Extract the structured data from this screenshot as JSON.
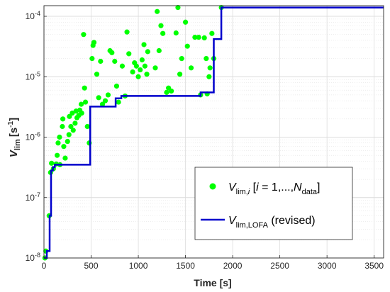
{
  "chart_data": {
    "type": "scatter",
    "xlabel": "Time [s]",
    "ylabel_main": "V",
    "ylabel_sub": "lim",
    "ylabel_unit": "[s",
    "ylabel_unit_exp": "-1",
    "ylabel_unit_end": "]",
    "xlim": [
      0,
      3600
    ],
    "ylim": [
      1e-08,
      0.00015
    ],
    "yscale": "log",
    "grid": true,
    "legend_position": "bottom-right",
    "colors": {
      "scatter": "#00ff00",
      "line": "#0000cc",
      "grid": "#dcdcdc",
      "axis": "#262626"
    },
    "x_ticks": [
      0,
      500,
      1000,
      1500,
      2000,
      2500,
      3000,
      3500
    ],
    "x_tick_labels": [
      "0",
      "500",
      "1000",
      "1500",
      "2000",
      "2500",
      "3000",
      "3500"
    ],
    "y_ticks": [
      {
        "value": 1e-08,
        "base": "10",
        "exp": "-8"
      },
      {
        "value": 1e-07,
        "base": "10",
        "exp": "-7"
      },
      {
        "value": 1e-06,
        "base": "10",
        "exp": "-6"
      },
      {
        "value": 1e-05,
        "base": "10",
        "exp": "-5"
      },
      {
        "value": 0.0001,
        "base": "10",
        "exp": "-4"
      }
    ],
    "series": [
      {
        "legend": {
          "main": "V",
          "sub": "lim,",
          "sub_i": "i",
          "mid": " [",
          "i": "i",
          "eq": " = 1,...,",
          "N": "N",
          "nsub": "data",
          "end": "]"
        },
        "kind": "scatter",
        "points": [
          [
            10,
            1e-08
          ],
          [
            20,
            1.3e-08
          ],
          [
            55,
            5e-08
          ],
          [
            70,
            2.6e-07
          ],
          [
            80,
            3.7e-07
          ],
          [
            100,
            3e-07
          ],
          [
            130,
            3.6e-07
          ],
          [
            140,
            5e-07
          ],
          [
            150,
            8e-07
          ],
          [
            165,
            1e-06
          ],
          [
            170,
            3.5e-07
          ],
          [
            195,
            1.5e-06
          ],
          [
            200,
            2e-06
          ],
          [
            210,
            7e-07
          ],
          [
            225,
            4.5e-07
          ],
          [
            250,
            8.5e-07
          ],
          [
            265,
            1.1e-06
          ],
          [
            270,
            2.2e-06
          ],
          [
            285,
            1.5e-06
          ],
          [
            300,
            2.5e-06
          ],
          [
            310,
            1.3e-06
          ],
          [
            330,
            1.7e-06
          ],
          [
            340,
            2.7e-06
          ],
          [
            350,
            2.1e-06
          ],
          [
            370,
            2.3e-06
          ],
          [
            380,
            2.8e-06
          ],
          [
            395,
            3.5e-06
          ],
          [
            400,
            2.5e-06
          ],
          [
            420,
            5e-05
          ],
          [
            430,
            6.5e-06
          ],
          [
            440,
            3.8e-06
          ],
          [
            460,
            1.5e-06
          ],
          [
            480,
            8e-07
          ],
          [
            510,
            2e-05
          ],
          [
            520,
            3.3e-05
          ],
          [
            530,
            3.7e-05
          ],
          [
            560,
            1.1e-05
          ],
          [
            580,
            4.5e-06
          ],
          [
            600,
            1.8e-05
          ],
          [
            620,
            3.5e-06
          ],
          [
            650,
            4e-06
          ],
          [
            680,
            5e-06
          ],
          [
            700,
            2.7e-05
          ],
          [
            720,
            2.5e-05
          ],
          [
            750,
            1.8e-05
          ],
          [
            770,
            7e-06
          ],
          [
            790,
            3.8e-06
          ],
          [
            830,
            1.5e-05
          ],
          [
            860,
            4.8e-06
          ],
          [
            880,
            5.5e-05
          ],
          [
            900,
            2.4e-05
          ],
          [
            940,
            1.2e-05
          ],
          [
            960,
            1.7e-05
          ],
          [
            980,
            1.5e-05
          ],
          [
            1000,
            1e-05
          ],
          [
            1020,
            1.3e-05
          ],
          [
            1040,
            1.9e-05
          ],
          [
            1060,
            3.4e-05
          ],
          [
            1070,
            1.5e-05
          ],
          [
            1090,
            1.1e-05
          ],
          [
            1100,
            2.6e-05
          ],
          [
            1180,
            1.4e-05
          ],
          [
            1200,
            0.00012
          ],
          [
            1220,
            2.7e-05
          ],
          [
            1240,
            7e-05
          ],
          [
            1260,
            5.2e-05
          ],
          [
            1300,
            5.5e-06
          ],
          [
            1320,
            6.5e-06
          ],
          [
            1350,
            5.8e-06
          ],
          [
            1400,
            5.3e-05
          ],
          [
            1420,
            0.00014
          ],
          [
            1440,
            1.1e-05
          ],
          [
            1460,
            2e-05
          ],
          [
            1500,
            8e-05
          ],
          [
            1520,
            3.2e-05
          ],
          [
            1560,
            1.4e-05
          ],
          [
            1600,
            4.5e-05
          ],
          [
            1640,
            4.5e-05
          ],
          [
            1660,
            5e-06
          ],
          [
            1700,
            4.4e-05
          ],
          [
            1720,
            2e-05
          ],
          [
            1730,
            5.2e-06
          ],
          [
            1750,
            1e-05
          ],
          [
            1760,
            1.4e-05
          ],
          [
            1780,
            5.2e-05
          ],
          [
            1800,
            2e-05
          ],
          [
            1880,
            0.00014
          ]
        ]
      },
      {
        "legend": {
          "main": "V",
          "sub": "lim,LOFA",
          "rest": " (revised)"
        },
        "kind": "step",
        "points": [
          [
            0,
            1e-08
          ],
          [
            30,
            1e-08
          ],
          [
            30,
            1.3e-08
          ],
          [
            60,
            1.3e-08
          ],
          [
            60,
            5e-08
          ],
          [
            75,
            5e-08
          ],
          [
            75,
            2.8e-07
          ],
          [
            95,
            2.8e-07
          ],
          [
            95,
            3.2e-07
          ],
          [
            115,
            3.2e-07
          ],
          [
            115,
            3.5e-07
          ],
          [
            490,
            3.5e-07
          ],
          [
            490,
            3.2e-06
          ],
          [
            760,
            3.2e-06
          ],
          [
            760,
            4.4e-06
          ],
          [
            820,
            4.4e-06
          ],
          [
            820,
            4.8e-06
          ],
          [
            1660,
            4.8e-06
          ],
          [
            1660,
            5.5e-06
          ],
          [
            1800,
            5.5e-06
          ],
          [
            1800,
            4.2e-05
          ],
          [
            1880,
            4.2e-05
          ],
          [
            1880,
            0.00014
          ],
          [
            3600,
            0.00014
          ]
        ]
      }
    ]
  }
}
